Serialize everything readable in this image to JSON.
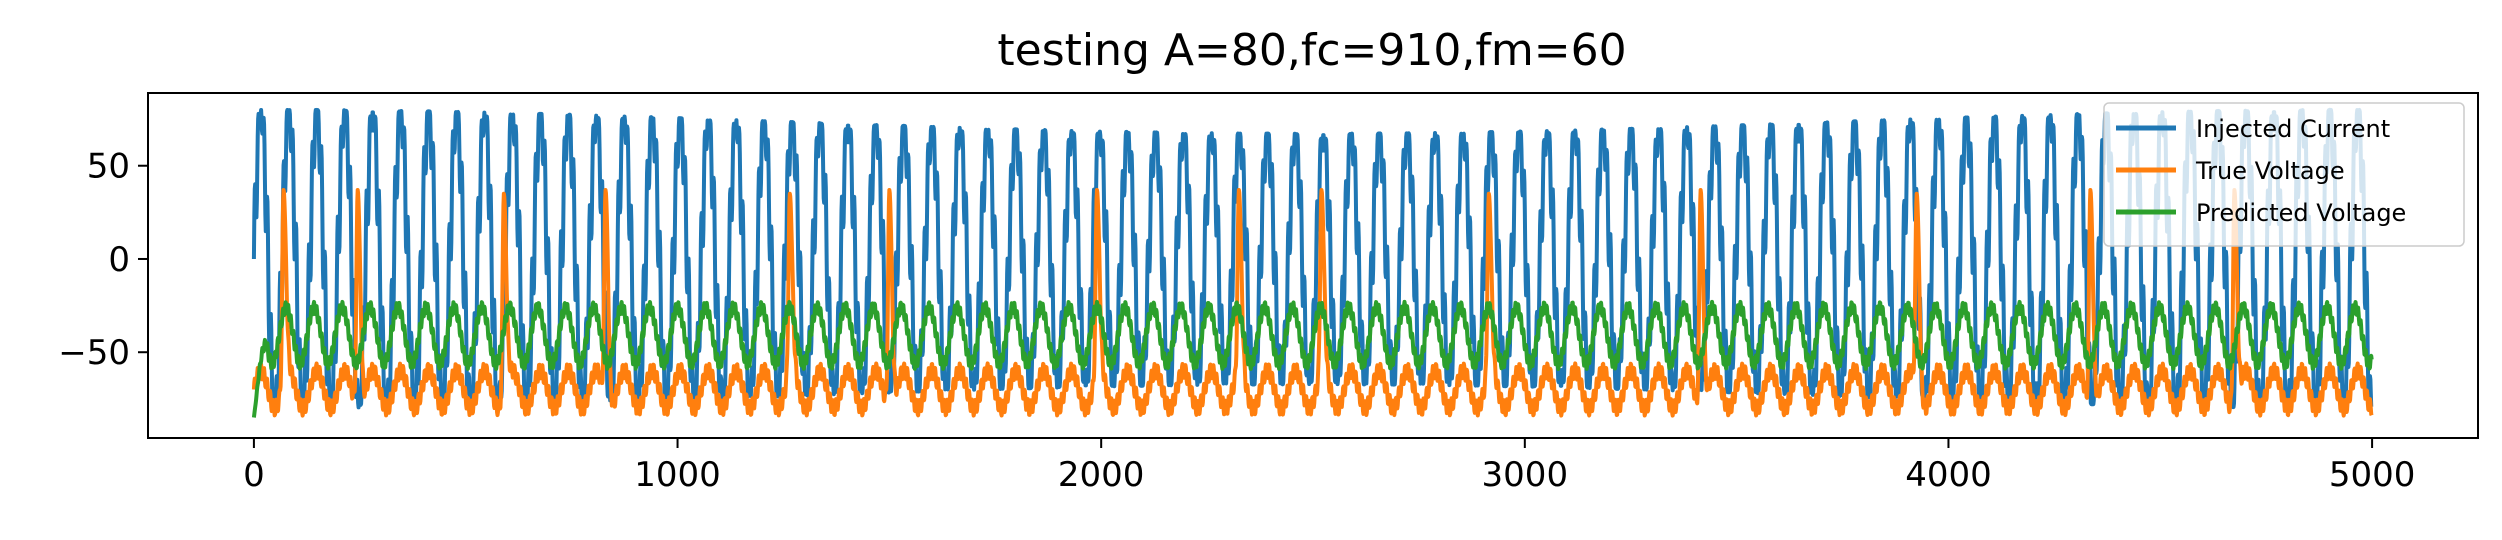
{
  "chart_data": {
    "type": "line",
    "title": "testing A=80,fc=910,fm=60",
    "xlabel": "",
    "ylabel": "",
    "xlim": [
      -250,
      5250
    ],
    "ylim": [
      -96,
      89
    ],
    "xticks": [
      0,
      1000,
      2000,
      3000,
      4000,
      5000
    ],
    "xtick_labels": [
      "0",
      "1000",
      "2000",
      "3000",
      "4000",
      "5000"
    ],
    "yticks": [
      50,
      0,
      -50
    ],
    "ytick_labels": [
      "50",
      "0",
      "−50"
    ],
    "grid": false,
    "legend_position": "top-right",
    "n_points": 5000,
    "series": [
      {
        "name": "Injected Current",
        "color": "#1f77b4",
        "description_values": {
          "amplitude": 80,
          "carrier_period_samples": 66,
          "modulation_period_samples": 5000
        },
        "y_range": [
          -80,
          80
        ]
      },
      {
        "name": "True Voltage",
        "color": "#ff7f0e",
        "baseline_range": [
          -85,
          -55
        ],
        "spike_x": [
          70,
          245,
          590,
          830,
          1265,
          1500,
          1990,
          2325,
          2520,
          2915,
          3415,
          3925,
          4335,
          4675
        ],
        "spike_peak_y": [
          37,
          37,
          35,
          37,
          35,
          37,
          37,
          37,
          37,
          35,
          37,
          35,
          37,
          37
        ]
      },
      {
        "name": "Predicted Voltage",
        "color": "#2ca02c",
        "y_range": [
          -57,
          -25
        ],
        "start_y": -85
      }
    ]
  }
}
